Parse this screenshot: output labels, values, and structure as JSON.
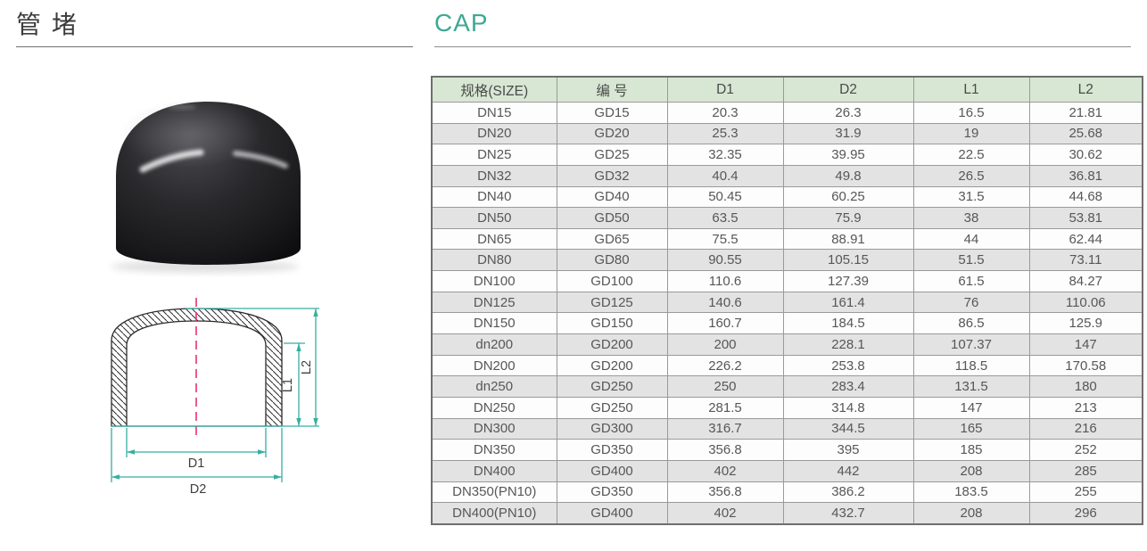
{
  "titles": {
    "cn": "管 堵",
    "en": "CAP"
  },
  "colors": {
    "accent_teal": "#3FA893",
    "drawing_dimension_line": "#35AFA2",
    "drawing_centerline": "#E8316F",
    "table_header_bg": "#D7E7D3",
    "table_alt_row_bg": "#E3E3E3",
    "table_border": "#9A9A9A",
    "text_dark": "#3C3C3C",
    "table_text": "#575757"
  },
  "drawing": {
    "labels": {
      "d1": "D1",
      "d2": "D2",
      "l1": "L1",
      "l2": "L2"
    }
  },
  "table": {
    "headers": [
      "规格(SIZE)",
      "编 号",
      "D1",
      "D2",
      "L1",
      "L2"
    ],
    "rows": [
      [
        "DN15",
        "GD15",
        "20.3",
        "26.3",
        "16.5",
        "21.81"
      ],
      [
        "DN20",
        "GD20",
        "25.3",
        "31.9",
        "19",
        "25.68"
      ],
      [
        "DN25",
        "GD25",
        "32.35",
        "39.95",
        "22.5",
        "30.62"
      ],
      [
        "DN32",
        "GD32",
        "40.4",
        "49.8",
        "26.5",
        "36.81"
      ],
      [
        "DN40",
        "GD40",
        "50.45",
        "60.25",
        "31.5",
        "44.68"
      ],
      [
        "DN50",
        "GD50",
        "63.5",
        "75.9",
        "38",
        "53.81"
      ],
      [
        "DN65",
        "GD65",
        "75.5",
        "88.91",
        "44",
        "62.44"
      ],
      [
        "DN80",
        "GD80",
        "90.55",
        "105.15",
        "51.5",
        "73.11"
      ],
      [
        "DN100",
        "GD100",
        "110.6",
        "127.39",
        "61.5",
        "84.27"
      ],
      [
        "DN125",
        "GD125",
        "140.6",
        "161.4",
        "76",
        "110.06"
      ],
      [
        "DN150",
        "GD150",
        "160.7",
        "184.5",
        "86.5",
        "125.9"
      ],
      [
        "dn200",
        "GD200",
        "200",
        "228.1",
        "107.37",
        "147"
      ],
      [
        "DN200",
        "GD200",
        "226.2",
        "253.8",
        "118.5",
        "170.58"
      ],
      [
        "dn250",
        "GD250",
        "250",
        "283.4",
        "131.5",
        "180"
      ],
      [
        "DN250",
        "GD250",
        "281.5",
        "314.8",
        "147",
        "213"
      ],
      [
        "DN300",
        "GD300",
        "316.7",
        "344.5",
        "165",
        "216"
      ],
      [
        "DN350",
        "GD350",
        "356.8",
        "395",
        "185",
        "252"
      ],
      [
        "DN400",
        "GD400",
        "402",
        "442",
        "208",
        "285"
      ],
      [
        "DN350(PN10)",
        "GD350",
        "356.8",
        "386.2",
        "183.5",
        "255"
      ],
      [
        "DN400(PN10)",
        "GD400",
        "402",
        "432.7",
        "208",
        "296"
      ]
    ]
  }
}
